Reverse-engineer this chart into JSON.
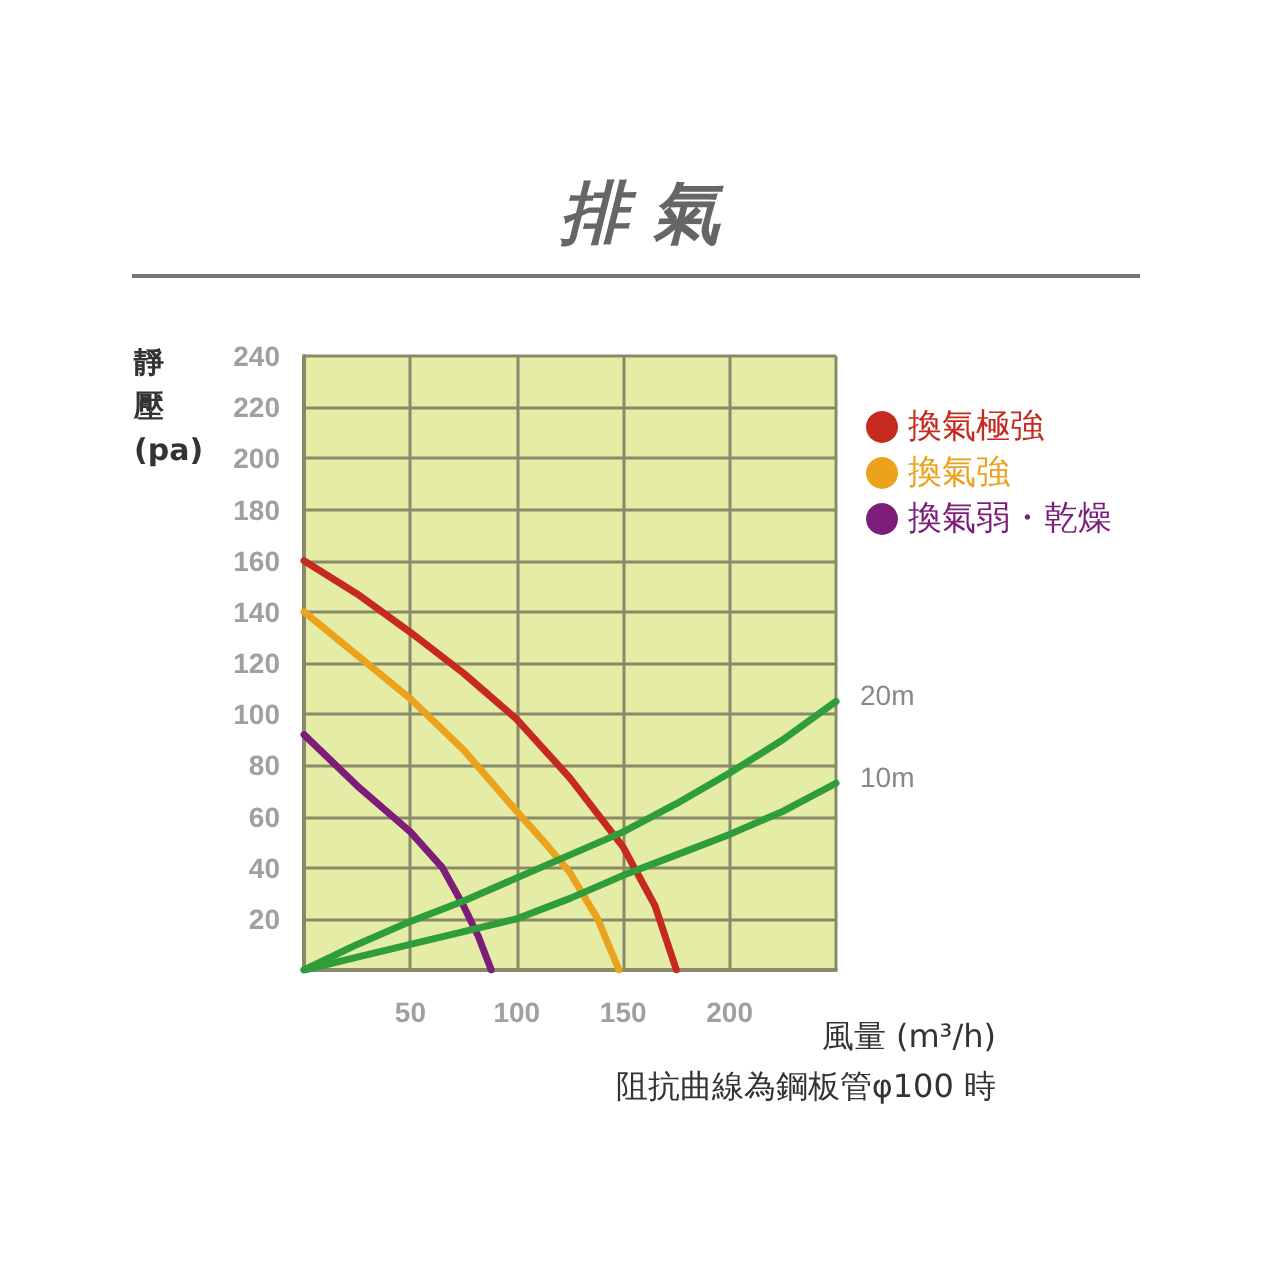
{
  "chart_data": {
    "type": "line",
    "title": "排 氣",
    "xlabel": "風量 (m³/h)",
    "ylabel": "靜壓(pa)",
    "xlim": [
      0,
      250
    ],
    "xticks": [
      {
        "value": 0,
        "label": null
      },
      50,
      100,
      150,
      200,
      {
        "value": 250,
        "label": null
      }
    ],
    "ylim": [
      0,
      240
    ],
    "yticks": [
      {
        "value": 0,
        "label": null
      },
      20,
      40,
      60,
      80,
      100,
      120,
      140,
      160,
      180,
      200,
      220,
      240
    ],
    "grid": true,
    "legend": "right",
    "marker": "none",
    "line_style": "solid",
    "series": [
      {
        "name": "換氣極強",
        "color": "#c62a1e",
        "x": [
          0,
          25,
          50,
          75,
          100,
          125,
          150,
          165,
          175
        ],
        "values": [
          160,
          147,
          132,
          116,
          98,
          75,
          48,
          25,
          0
        ]
      },
      {
        "name": "換氣強",
        "color": "#eba21c",
        "x": [
          0,
          25,
          50,
          75,
          100,
          115,
          125,
          138,
          148
        ],
        "values": [
          140,
          123,
          106,
          86,
          62,
          48,
          38,
          20,
          0
        ]
      },
      {
        "name": "換氣弱・乾燥",
        "color": "#7d1d7a",
        "x": [
          0,
          25,
          50,
          65,
          75,
          82,
          88
        ],
        "values": [
          92,
          72,
          54,
          40,
          25,
          13,
          0
        ]
      },
      {
        "color": "#2f9e3a",
        "x": [
          0,
          25,
          50,
          75,
          100,
          125,
          150,
          175,
          200,
          225,
          250
        ],
        "values": [
          0,
          10,
          19,
          27,
          36,
          45,
          54,
          65,
          77,
          90,
          105
        ]
      },
      {
        "color": "#2f9e3a",
        "x": [
          0,
          25,
          50,
          75,
          100,
          125,
          150,
          175,
          200,
          225,
          250
        ],
        "values": [
          0,
          5,
          10,
          15,
          20,
          28,
          37,
          45,
          53,
          62,
          73
        ]
      }
    ],
    "annotations": [
      {
        "text": "20m",
        "x": 250,
        "y": 105
      },
      {
        "text": "10m",
        "x": 250,
        "y": 73
      },
      "阻抗曲線為鋼板管φ100 時"
    ]
  }
}
